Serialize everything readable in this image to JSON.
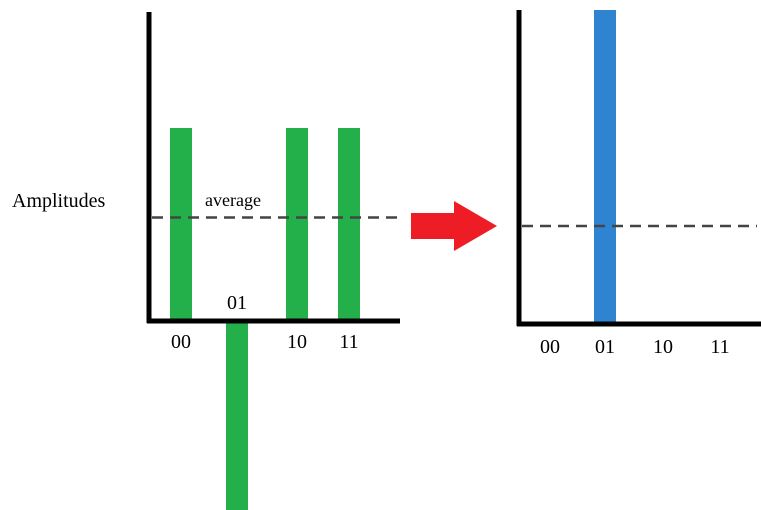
{
  "colors": {
    "left_bars": "#23b04a",
    "right_bars": "#2f84d1",
    "axis": "#000000",
    "average_line": "#444444",
    "arrow": "#ee1c24"
  },
  "chart_data": [
    {
      "type": "bar",
      "categories": [
        "00",
        "01",
        "10",
        "11"
      ],
      "values": [
        0.5,
        -0.5,
        0.5,
        0.5
      ],
      "ylabel": "Amplitudes",
      "ylim": [
        -0.5,
        0.5
      ],
      "average": {
        "label": "average",
        "value": 0.25
      },
      "bar_color": "#23b04a",
      "grid": false
    },
    {
      "type": "bar",
      "categories": [
        "00",
        "01",
        "10",
        "11"
      ],
      "values": [
        0,
        1,
        0,
        0
      ],
      "ylim": [
        0,
        1
      ],
      "average": {
        "value": 0.25
      },
      "bar_color": "#2f84d1",
      "grid": false
    }
  ],
  "arrow": {
    "direction": "right",
    "icon": "red-right-arrow"
  }
}
